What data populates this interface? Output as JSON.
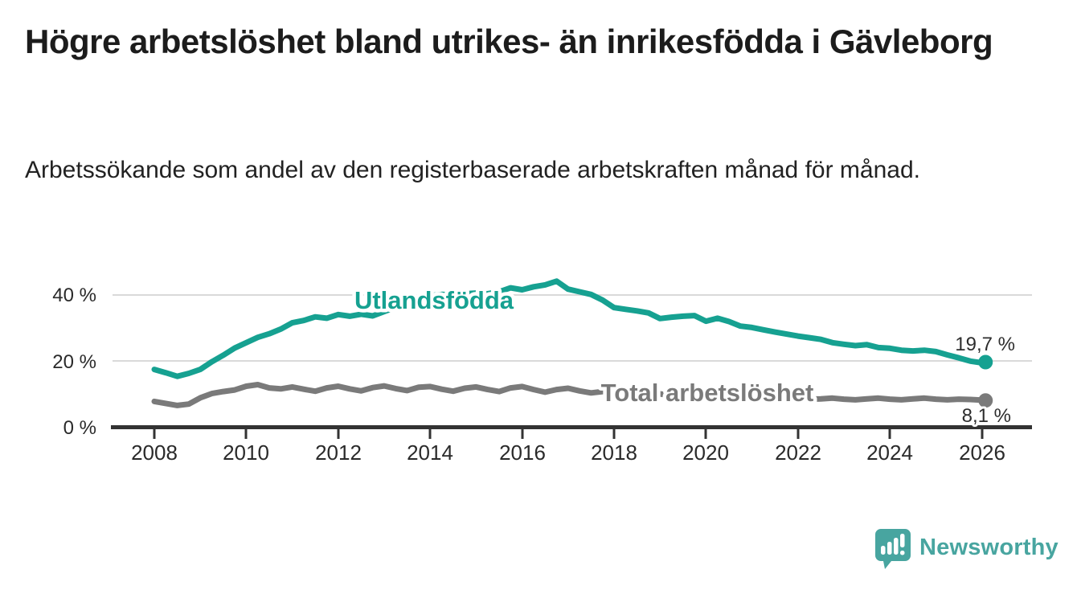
{
  "header": {
    "title": "Högre arbetslöshet bland utrikes- än inrikesfödda i Gävleborg",
    "subtitle": "Arbetssökande som andel av den registerbaserade arbetskraften månad för månad."
  },
  "chart_data": {
    "type": "line",
    "title": "Högre arbetslöshet bland utrikes- än inrikesfödda i Gävleborg",
    "subtitle": "Arbetssökande som andel av den registerbaserade arbetskraften månad för månad.",
    "grid": "horizontal",
    "legend_position": "inline-labels",
    "x_axis": {
      "range": [
        2007.1,
        2027.1
      ],
      "ticks": [
        2008,
        2010,
        2012,
        2014,
        2016,
        2018,
        2020,
        2022,
        2024,
        2026
      ],
      "tick_labels": [
        "2008",
        "2010",
        "2012",
        "2014",
        "2016",
        "2018",
        "2020",
        "2022",
        "2024",
        "2026"
      ]
    },
    "y_axis": {
      "range": [
        0,
        48
      ],
      "ticks": [
        0,
        20,
        40
      ],
      "tick_labels": [
        "0 %",
        "20 %",
        "40 %"
      ]
    },
    "x": [
      2008.0,
      2008.25,
      2008.5,
      2008.75,
      2009.0,
      2009.25,
      2009.5,
      2009.75,
      2010.0,
      2010.25,
      2010.5,
      2010.75,
      2011.0,
      2011.25,
      2011.5,
      2011.75,
      2012.0,
      2012.25,
      2012.5,
      2012.75,
      2013.0,
      2013.25,
      2013.5,
      2013.75,
      2014.0,
      2014.25,
      2014.5,
      2014.75,
      2015.0,
      2015.25,
      2015.5,
      2015.75,
      2016.0,
      2016.25,
      2016.5,
      2016.75,
      2017.0,
      2017.25,
      2017.5,
      2017.75,
      2018.0,
      2018.25,
      2018.5,
      2018.75,
      2019.0,
      2019.25,
      2019.5,
      2019.75,
      2020.0,
      2020.25,
      2020.5,
      2020.75,
      2021.0,
      2021.25,
      2021.5,
      2021.75,
      2022.0,
      2022.25,
      2022.5,
      2022.75,
      2023.0,
      2023.25,
      2023.5,
      2023.75,
      2024.0,
      2024.25,
      2024.5,
      2024.75,
      2025.0,
      2025.25,
      2025.5,
      2025.75,
      2026.0,
      2026.08
    ],
    "series": [
      {
        "name": "Utlandsfödda",
        "color": "#16a191",
        "end_value": 19.7,
        "end_label": "19,7 %",
        "values": [
          17.5,
          16.5,
          15.4,
          16.3,
          17.5,
          19.8,
          21.8,
          24.0,
          25.6,
          27.2,
          28.3,
          29.7,
          31.6,
          32.3,
          33.4,
          33.0,
          34.1,
          33.6,
          34.2,
          33.7,
          35.0,
          36.3,
          37.6,
          38.8,
          39.8,
          40.2,
          40.0,
          40.4,
          40.6,
          40.4,
          41.0,
          42.2,
          41.6,
          42.5,
          43.1,
          44.2,
          41.8,
          41.0,
          40.2,
          38.5,
          36.2,
          35.7,
          35.2,
          34.6,
          32.9,
          33.3,
          33.6,
          33.8,
          32.1,
          33.0,
          32.0,
          30.6,
          30.2,
          29.5,
          28.8,
          28.2,
          27.6,
          27.1,
          26.6,
          25.6,
          25.1,
          24.7,
          25.0,
          24.1,
          23.9,
          23.3,
          23.1,
          23.3,
          22.9,
          21.9,
          21.0,
          20.0,
          19.5,
          19.7
        ]
      },
      {
        "name": "Total arbetslöshet",
        "color": "#7a7a7a",
        "end_value": 8.1,
        "end_label": "8,1 %",
        "values": [
          7.8,
          7.2,
          6.6,
          7.0,
          8.9,
          10.2,
          10.8,
          11.3,
          12.4,
          12.9,
          11.9,
          11.6,
          12.2,
          11.5,
          10.9,
          11.9,
          12.4,
          11.6,
          11.0,
          12.0,
          12.5,
          11.7,
          11.1,
          12.1,
          12.3,
          11.5,
          10.9,
          11.8,
          12.2,
          11.4,
          10.8,
          11.9,
          12.3,
          11.4,
          10.6,
          11.4,
          11.8,
          11.0,
          10.4,
          10.8,
          11.0,
          10.2,
          9.6,
          10.0,
          10.1,
          9.5,
          9.0,
          9.4,
          9.6,
          10.2,
          10.0,
          9.7,
          9.6,
          9.1,
          8.7,
          8.6,
          8.8,
          8.5,
          8.6,
          8.8,
          8.5,
          8.3,
          8.6,
          8.8,
          8.5,
          8.3,
          8.6,
          8.8,
          8.5,
          8.3,
          8.5,
          8.4,
          8.2,
          8.1
        ]
      }
    ],
    "colors": {
      "grid": "#d9d9d9",
      "axis": "#333333",
      "text": "#2a2a2a"
    }
  },
  "branding": {
    "logo_text": "Newsworthy",
    "logo_color": "#48a5a0",
    "logo_icon": "speech-bubble-bar-chart"
  }
}
